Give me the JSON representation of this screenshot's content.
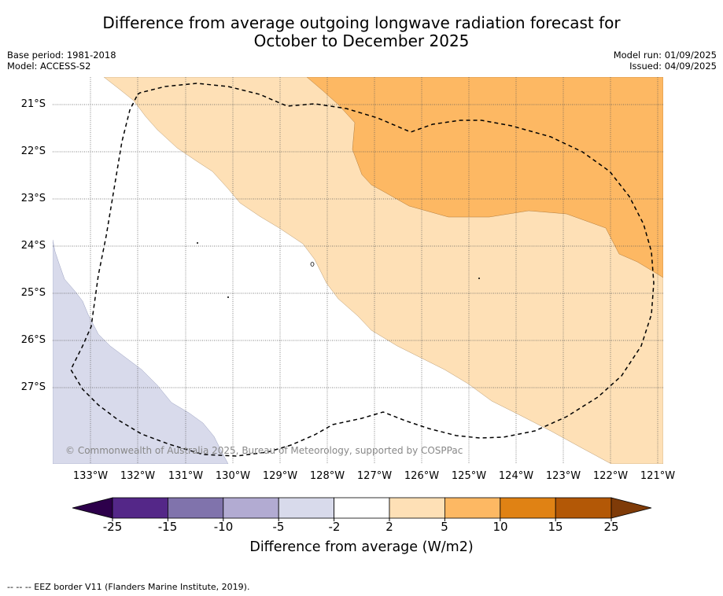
{
  "title_line1": "Difference from average outgoing longwave radiation forecast for",
  "title_line2": "October to December 2025",
  "base_period": "Base period: 1981-2018",
  "model": "Model: ACCESS-S2",
  "model_run": "Model run: 01/09/2025",
  "issued": "Issued: 04/09/2025",
  "latitudes": [
    "21°S",
    "22°S",
    "23°S",
    "24°S",
    "25°S",
    "26°S",
    "27°S"
  ],
  "longitudes": [
    "133°W",
    "132°W",
    "131°W",
    "130°W",
    "129°W",
    "128°W",
    "127°W",
    "126°W",
    "125°W",
    "124°W",
    "123°W",
    "122°W",
    "121°W"
  ],
  "copyright": "© Commonwealth of Australia 2025, Bureau of Meteorology, supported by COSPPac",
  "colorbar": {
    "ticks": [
      "-25",
      "-15",
      "-10",
      "-5",
      "-2",
      "2",
      "5",
      "10",
      "15",
      "25"
    ],
    "colors": [
      "#2d004b",
      "#542788",
      "#8073ac",
      "#b2abd2",
      "#d8daeb",
      "#ffffff",
      "#fee0b6",
      "#fdb863",
      "#e08214",
      "#b35806",
      "#7f3b08"
    ],
    "label": "Difference from average (W/m2)"
  },
  "footnote": "--  --  -- EEZ border V11 (Flanders Marine Institute, 2019)."
}
